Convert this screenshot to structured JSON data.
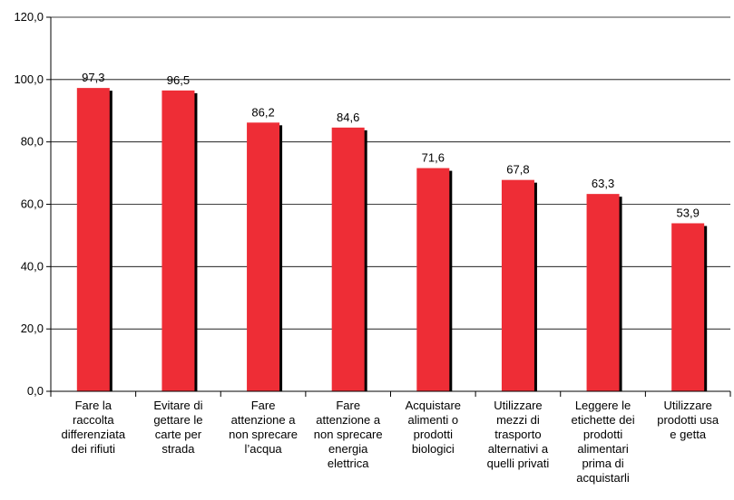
{
  "chart_data": {
    "type": "bar",
    "categories": [
      [
        "Fare la",
        "raccolta",
        "differenziata",
        "dei rifiuti"
      ],
      [
        "Evitare di",
        "gettare le",
        "carte per",
        "strada"
      ],
      [
        "Fare",
        "attenzione a",
        "non sprecare",
        "l’acqua"
      ],
      [
        "Fare",
        "attenzione a",
        "non sprecare",
        "energia",
        "elettrica"
      ],
      [
        "Acquistare",
        "alimenti o",
        "prodotti",
        "biologici"
      ],
      [
        "Utilizzare",
        "mezzi di",
        "trasporto",
        "alternativi a",
        "quelli privati"
      ],
      [
        "Leggere le",
        "etichette dei",
        "prodotti",
        "alimentari",
        "prima di",
        "acquistarli"
      ],
      [
        "Utilizzare",
        "prodotti usa",
        "e getta"
      ]
    ],
    "values": [
      97.3,
      96.5,
      86.2,
      84.6,
      71.6,
      67.8,
      63.3,
      53.9
    ],
    "value_labels": [
      "97,3",
      "96,5",
      "86,2",
      "84,6",
      "71,6",
      "67,8",
      "63,3",
      "53,9"
    ],
    "ylim": [
      0,
      120
    ],
    "yticks": [
      0,
      20,
      40,
      60,
      80,
      100,
      120
    ],
    "ytick_labels": [
      "0,0",
      "20,0",
      "40,0",
      "60,0",
      "80,0",
      "100,0",
      "120,0"
    ],
    "grid": true,
    "colors": {
      "bar": "#ee2d36",
      "shadow": "#000000",
      "grid": "#000000"
    }
  }
}
